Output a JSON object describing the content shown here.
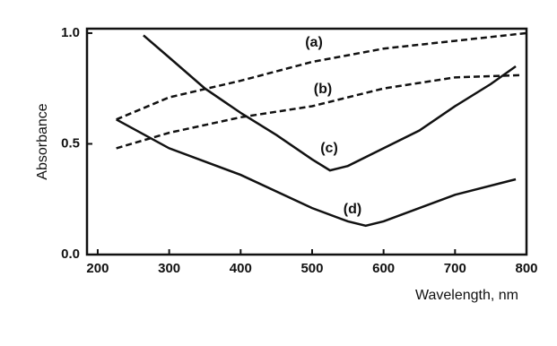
{
  "chart_data": {
    "type": "line",
    "x_label": "Wavelength, nm",
    "y_label": "Absorbance",
    "xlim": [
      185,
      800
    ],
    "ylim": [
      0,
      1.02
    ],
    "xticks": [
      200,
      300,
      400,
      500,
      600,
      700,
      800
    ],
    "yticks": [
      {
        "value": 0,
        "label": "0.0"
      },
      {
        "value": 0.5,
        "label": "0.5"
      },
      {
        "value": 1,
        "label": "1.0"
      }
    ],
    "series": [
      {
        "name": "(a)",
        "color": "#111111",
        "dashed": true,
        "x": [
          226,
          300,
          400,
          500,
          600,
          700,
          800
        ],
        "values": [
          0.61,
          0.71,
          0.785,
          0.87,
          0.93,
          0.965,
          1.0
        ]
      },
      {
        "name": "(b)",
        "color": "#111111",
        "dashed": true,
        "x": [
          226,
          300,
          400,
          500,
          600,
          700,
          790
        ],
        "values": [
          0.48,
          0.55,
          0.62,
          0.67,
          0.75,
          0.8,
          0.81
        ]
      },
      {
        "name": "(c)",
        "color": "#111111",
        "dashed": false,
        "x": [
          264,
          300,
          350,
          400,
          450,
          500,
          525,
          550,
          600,
          650,
          700,
          750,
          785
        ],
        "values": [
          0.99,
          0.89,
          0.75,
          0.64,
          0.54,
          0.43,
          0.38,
          0.4,
          0.48,
          0.56,
          0.67,
          0.77,
          0.85
        ]
      },
      {
        "name": "(d)",
        "color": "#111111",
        "dashed": false,
        "x": [
          226,
          300,
          400,
          500,
          550,
          575,
          600,
          700,
          785
        ],
        "values": [
          0.61,
          0.48,
          0.36,
          0.21,
          0.15,
          0.13,
          0.15,
          0.27,
          0.34
        ]
      }
    ]
  }
}
